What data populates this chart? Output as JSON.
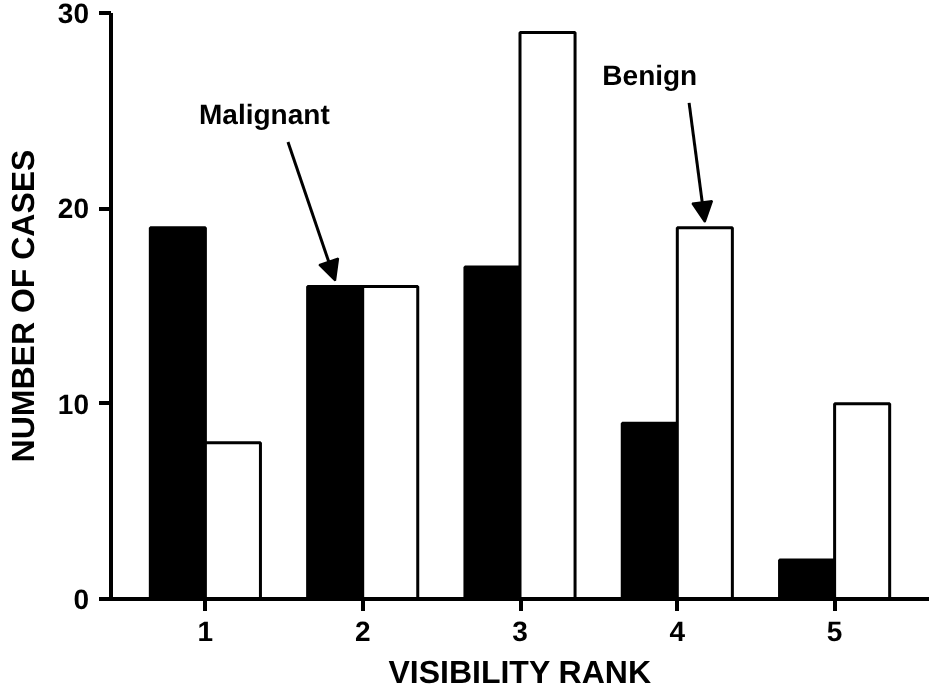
{
  "chart_data": {
    "type": "bar",
    "xlabel": "VISIBILITY RANK",
    "ylabel": "NUMBER OF CASES",
    "categories": [
      "1",
      "2",
      "3",
      "4",
      "5"
    ],
    "series": [
      {
        "name": "Malignant",
        "color": "#000000",
        "values": [
          19,
          16,
          17,
          9,
          2
        ]
      },
      {
        "name": "Benign",
        "color": "#ffffff",
        "values": [
          8,
          16,
          29,
          19,
          10
        ]
      }
    ],
    "ylim": [
      0,
      30
    ],
    "yticks": [
      0,
      10,
      20,
      30
    ],
    "grid": false
  }
}
